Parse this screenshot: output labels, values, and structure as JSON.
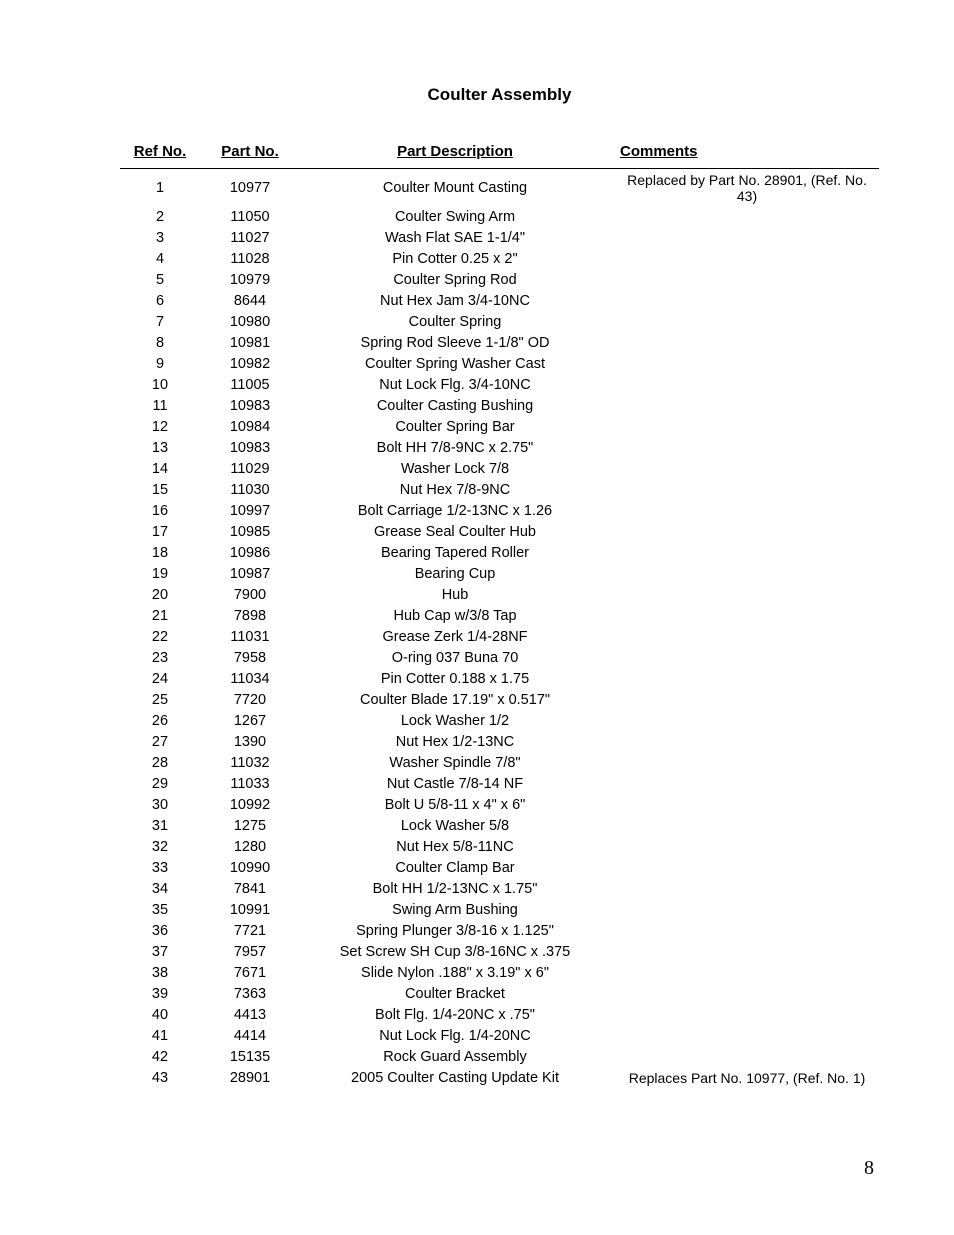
{
  "title": "Coulter Assembly",
  "headers": {
    "ref": "Ref No.",
    "part": "Part No.",
    "desc": "Part Description",
    "comments": "Comments"
  },
  "rows": [
    {
      "ref": "1",
      "part": "10977",
      "desc": "Coulter Mount Casting",
      "comments": "Replaced by Part No. 28901, (Ref. No. 43)"
    },
    {
      "ref": "2",
      "part": "11050",
      "desc": "Coulter Swing Arm",
      "comments": ""
    },
    {
      "ref": "3",
      "part": "11027",
      "desc": "Wash Flat SAE 1-1/4\"",
      "comments": ""
    },
    {
      "ref": "4",
      "part": "11028",
      "desc": "Pin Cotter 0.25 x 2\"",
      "comments": ""
    },
    {
      "ref": "5",
      "part": "10979",
      "desc": "Coulter Spring Rod",
      "comments": ""
    },
    {
      "ref": "6",
      "part": "8644",
      "desc": "Nut Hex Jam 3/4-10NC",
      "comments": ""
    },
    {
      "ref": "7",
      "part": "10980",
      "desc": "Coulter Spring",
      "comments": ""
    },
    {
      "ref": "8",
      "part": "10981",
      "desc": "Spring Rod Sleeve 1-1/8\" OD",
      "comments": ""
    },
    {
      "ref": "9",
      "part": "10982",
      "desc": "Coulter Spring Washer Cast",
      "comments": ""
    },
    {
      "ref": "10",
      "part": "11005",
      "desc": "Nut Lock Flg. 3/4-10NC",
      "comments": ""
    },
    {
      "ref": "11",
      "part": "10983",
      "desc": "Coulter Casting Bushing",
      "comments": ""
    },
    {
      "ref": "12",
      "part": "10984",
      "desc": "Coulter Spring Bar",
      "comments": ""
    },
    {
      "ref": "13",
      "part": "10983",
      "desc": "Bolt HH 7/8-9NC x 2.75\"",
      "comments": ""
    },
    {
      "ref": "14",
      "part": "11029",
      "desc": "Washer Lock 7/8",
      "comments": ""
    },
    {
      "ref": "15",
      "part": "11030",
      "desc": "Nut Hex 7/8-9NC",
      "comments": ""
    },
    {
      "ref": "16",
      "part": "10997",
      "desc": "Bolt Carriage 1/2-13NC x 1.26",
      "comments": ""
    },
    {
      "ref": "17",
      "part": "10985",
      "desc": "Grease Seal Coulter Hub",
      "comments": ""
    },
    {
      "ref": "18",
      "part": "10986",
      "desc": "Bearing Tapered Roller",
      "comments": ""
    },
    {
      "ref": "19",
      "part": "10987",
      "desc": "Bearing Cup",
      "comments": ""
    },
    {
      "ref": "20",
      "part": "7900",
      "desc": "Hub",
      "comments": ""
    },
    {
      "ref": "21",
      "part": "7898",
      "desc": "Hub Cap w/3/8 Tap",
      "comments": ""
    },
    {
      "ref": "22",
      "part": "11031",
      "desc": "Grease Zerk 1/4-28NF",
      "comments": ""
    },
    {
      "ref": "23",
      "part": "7958",
      "desc": "O-ring 037 Buna 70",
      "comments": ""
    },
    {
      "ref": "24",
      "part": "11034",
      "desc": "Pin Cotter 0.188 x 1.75",
      "comments": ""
    },
    {
      "ref": "25",
      "part": "7720",
      "desc": "Coulter Blade 17.19\" x 0.517\"",
      "comments": ""
    },
    {
      "ref": "26",
      "part": "1267",
      "desc": "Lock Washer 1/2",
      "comments": ""
    },
    {
      "ref": "27",
      "part": "1390",
      "desc": "Nut Hex 1/2-13NC",
      "comments": ""
    },
    {
      "ref": "28",
      "part": "11032",
      "desc": "Washer Spindle 7/8\"",
      "comments": ""
    },
    {
      "ref": "29",
      "part": "11033",
      "desc": "Nut Castle 7/8-14 NF",
      "comments": ""
    },
    {
      "ref": "30",
      "part": "10992",
      "desc": "Bolt U 5/8-11 x 4\" x 6\"",
      "comments": ""
    },
    {
      "ref": "31",
      "part": "1275",
      "desc": "Lock Washer 5/8",
      "comments": ""
    },
    {
      "ref": "32",
      "part": "1280",
      "desc": "Nut Hex 5/8-11NC",
      "comments": ""
    },
    {
      "ref": "33",
      "part": "10990",
      "desc": "Coulter Clamp Bar",
      "comments": ""
    },
    {
      "ref": "34",
      "part": "7841",
      "desc": "Bolt HH 1/2-13NC x 1.75\"",
      "comments": ""
    },
    {
      "ref": "35",
      "part": "10991",
      "desc": "Swing Arm Bushing",
      "comments": ""
    },
    {
      "ref": "36",
      "part": "7721",
      "desc": "Spring Plunger 3/8-16 x 1.125\"",
      "comments": ""
    },
    {
      "ref": "37",
      "part": "7957",
      "desc": "Set Screw SH Cup 3/8-16NC x .375",
      "comments": ""
    },
    {
      "ref": "38",
      "part": "7671",
      "desc": "Slide Nylon .188\" x 3.19\" x 6\"",
      "comments": ""
    },
    {
      "ref": "39",
      "part": "7363",
      "desc": "Coulter Bracket",
      "comments": ""
    },
    {
      "ref": "40",
      "part": "4413",
      "desc": "Bolt Flg. 1/4-20NC x .75\"",
      "comments": ""
    },
    {
      "ref": "41",
      "part": "4414",
      "desc": "Nut Lock Flg. 1/4-20NC",
      "comments": ""
    },
    {
      "ref": "42",
      "part": "15135",
      "desc": "Rock Guard Assembly",
      "comments": ""
    },
    {
      "ref": "43",
      "part": "28901",
      "desc": "2005 Coulter Casting Update Kit",
      "comments": "Replaces Part No. 10977, (Ref. No. 1)"
    }
  ],
  "pageNumber": "8"
}
